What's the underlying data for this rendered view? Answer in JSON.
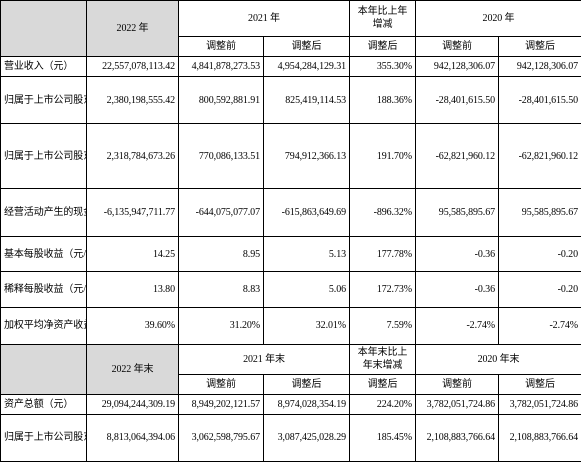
{
  "header1": {
    "y2022": "2022 年",
    "y2021": "2021 年",
    "change": "本年比上年增减",
    "y2020": "2020 年",
    "before": "调整前",
    "after": "调整后",
    "after_change": "调整后",
    "before_2020": "调整前",
    "after_2020": "调整后"
  },
  "rows1": [
    {
      "label": "营业收入（元）",
      "v2022": "22,557,078,113.42",
      "v2021a": "4,841,878,273.53",
      "v2021b": "4,954,284,129.31",
      "chg": "355.30%",
      "v2020a": "942,128,306.07",
      "v2020b": "942,128,306.07"
    },
    {
      "label": "归属于上市公司股东的净利润（元）",
      "v2022": "2,380,198,555.42",
      "v2021a": "800,592,881.91",
      "v2021b": "825,419,114.53",
      "chg": "188.36%",
      "v2020a": "-28,401,615.50",
      "v2020b": "-28,401,615.50"
    },
    {
      "label": "归属于上市公司股东的扣除非经常性损益的净利润（元）",
      "v2022": "2,318,784,673.26",
      "v2021a": "770,086,133.51",
      "v2021b": "794,912,366.13",
      "chg": "191.70%",
      "v2020a": "-62,821,960.12",
      "v2020b": "-62,821,960.12"
    },
    {
      "label": "经营活动产生的现金流量净额（元）",
      "v2022": "-6,135,947,711.77",
      "v2021a": "-644,075,077.07",
      "v2021b": "-615,863,649.69",
      "chg": "-896.32%",
      "v2020a": "95,585,895.67",
      "v2020b": "95,585,895.67"
    },
    {
      "label": "基本每股收益（元/股）",
      "v2022": "14.25",
      "v2021a": "8.95",
      "v2021b": "5.13",
      "chg": "177.78%",
      "v2020a": "-0.36",
      "v2020b": "-0.20"
    },
    {
      "label": "稀释每股收益（元/股）",
      "v2022": "13.80",
      "v2021a": "8.83",
      "v2021b": "5.06",
      "chg": "172.73%",
      "v2020a": "-0.36",
      "v2020b": "-0.20"
    },
    {
      "label": "加权平均净资产收益率",
      "v2022": "39.60%",
      "v2021a": "31.20%",
      "v2021b": "32.01%",
      "chg": "7.59%",
      "v2020a": "-2.74%",
      "v2020b": "-2.74%"
    }
  ],
  "header2": {
    "y2022": "2022 年末",
    "y2021": "2021 年末",
    "change": "本年末比上年末增减",
    "y2020": "2020 年末",
    "before": "调整前",
    "after": "调整后",
    "after_change": "调整后",
    "before_2020": "调整前",
    "after_2020": "调整后"
  },
  "rows2": [
    {
      "label": "资产总额（元）",
      "v2022": "29,094,244,309.19",
      "v2021a": "8,949,202,121.57",
      "v2021b": "8,974,028,354.19",
      "chg": "224.20%",
      "v2020a": "3,782,051,724.86",
      "v2020b": "3,782,051,724.86"
    },
    {
      "label": "归属于上市公司股东的净资产（元）",
      "v2022": "8,813,064,394.06",
      "v2021a": "3,062,598,795.67",
      "v2021b": "3,087,425,028.29",
      "chg": "185.45%",
      "v2020a": "2,108,883,766.64",
      "v2020b": "2,108,883,766.64"
    }
  ],
  "colors": {
    "header_bg": "#d9d9d9",
    "border": "#000000"
  }
}
